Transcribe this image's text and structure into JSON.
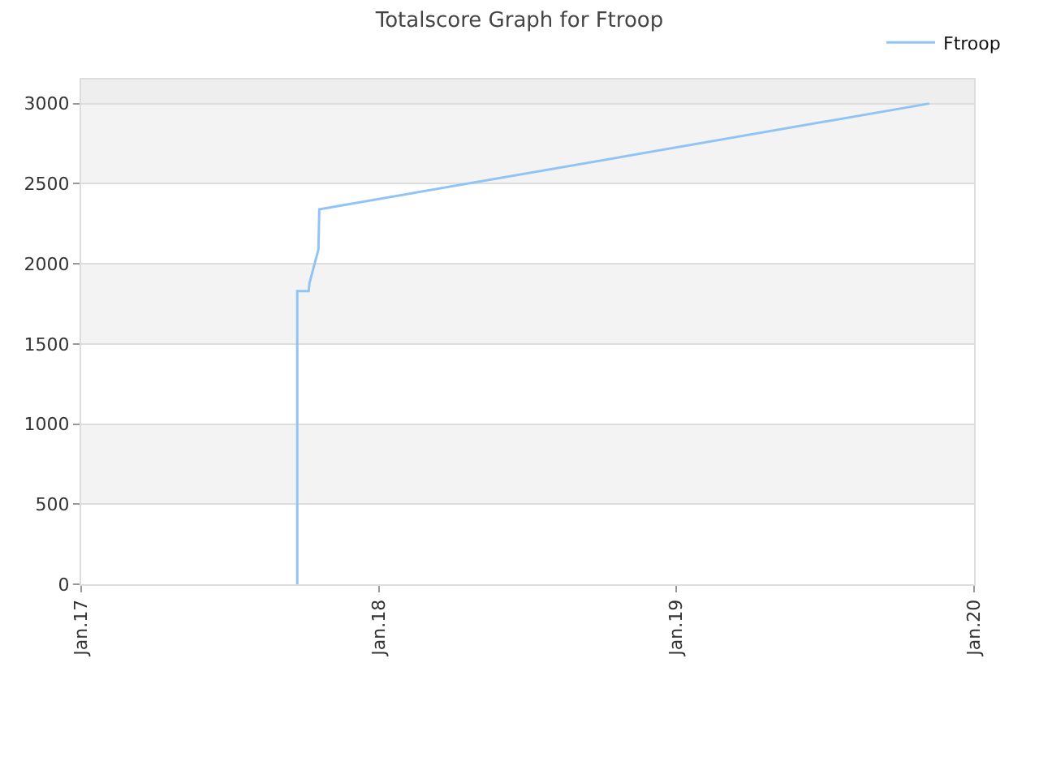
{
  "chart_data": {
    "type": "line",
    "title": "Totalscore Graph for Ftroop",
    "x": [
      "2017-09-23",
      "2017-09-23",
      "2017-10-07",
      "2017-10-08",
      "2017-10-19",
      "2017-10-20",
      "2019-11-07"
    ],
    "series": [
      {
        "name": "Ftroop",
        "color": "#90c4f4",
        "values": [
          0,
          1830,
          1830,
          1880,
          2090,
          2340,
          3000
        ]
      }
    ],
    "xlim": [
      "2017-01-01",
      "2020-01-01"
    ],
    "xticks": [
      {
        "value": "2017-01-01",
        "label": "Jan.17"
      },
      {
        "value": "2018-01-01",
        "label": "Jan.18"
      },
      {
        "value": "2019-01-01",
        "label": "Jan.19"
      },
      {
        "value": "2020-01-01",
        "label": "Jan.20"
      }
    ],
    "ylim": [
      0,
      3150
    ],
    "yticks": [
      0,
      500,
      1000,
      1500,
      2000,
      2500,
      3000
    ],
    "bands": [
      {
        "axis": "y",
        "from": 500,
        "to": 1000,
        "color": "#f3f3f3"
      },
      {
        "axis": "y",
        "from": 1500,
        "to": 2000,
        "color": "#f3f3f3"
      },
      {
        "axis": "y",
        "from": 2500,
        "to": 3000,
        "color": "#f3f3f3"
      },
      {
        "axis": "y",
        "from": 3000,
        "to": 3150,
        "color": "#eeeeee"
      }
    ],
    "grid": "y",
    "legend": "top right",
    "marker": "none",
    "line_style": "solid"
  }
}
